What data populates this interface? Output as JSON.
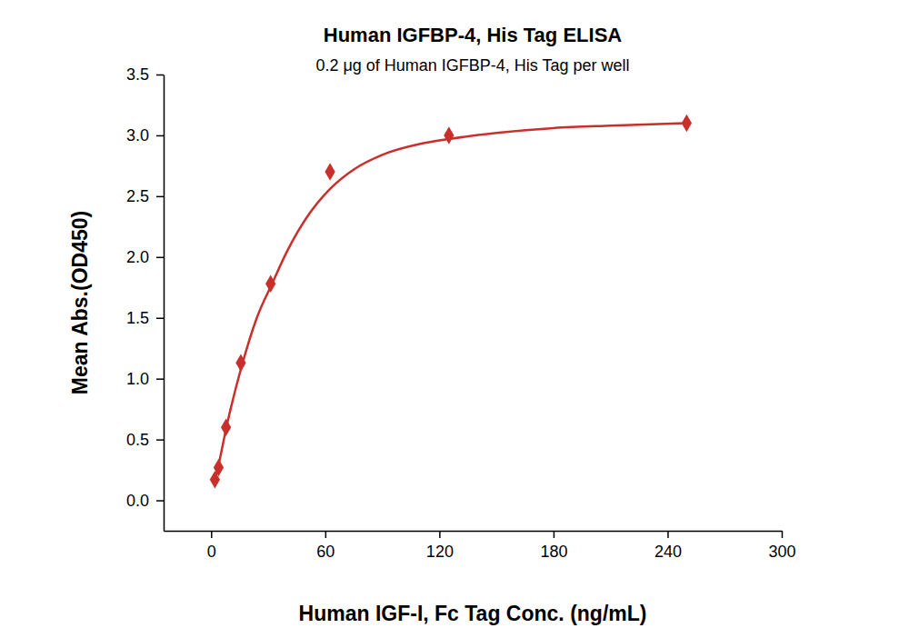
{
  "chart_data": {
    "type": "scatter",
    "title": "Human IGFBP-4, His Tag ELISA",
    "subtitle": "0.2 μg of Human IGFBP-4, His Tag per well",
    "x_label": "Human IGF-I, Fc Tag Conc. (ng/mL)",
    "y_label": "Mean Abs.(OD450)",
    "xlim": [
      -25,
      300
    ],
    "ylim": [
      -0.25,
      3.5
    ],
    "xticks": [
      0,
      60,
      120,
      180,
      240,
      300
    ],
    "yticks": [
      {
        "value": 0,
        "label": "0.0"
      },
      {
        "value": 0.5,
        "label": "0.5"
      },
      {
        "value": 1,
        "label": "1.0"
      },
      {
        "value": 1.5,
        "label": "1.5"
      },
      {
        "value": 2,
        "label": "2.0"
      },
      {
        "value": 2.5,
        "label": "2.5"
      },
      {
        "value": 3,
        "label": "3.0"
      },
      {
        "value": 3.5,
        "label": "3.5"
      }
    ],
    "grid": false,
    "series": [
      {
        "type": "scatter",
        "marker": "diamond",
        "color": "#c9302c",
        "x": [
          1.95,
          3.9,
          7.8,
          15.6,
          31.25,
          62.5,
          125,
          250
        ],
        "values": [
          0.17,
          0.27,
          0.6,
          1.13,
          1.78,
          2.7,
          3.0,
          3.1
        ]
      },
      {
        "type": "line",
        "line_style": "solid",
        "color": "#c9302c",
        "x": [
          1.95,
          4,
          8,
          16,
          24,
          32,
          40,
          50,
          62.5,
          75,
          90,
          110,
          125,
          150,
          180,
          210,
          250
        ],
        "values": [
          0.17,
          0.3,
          0.6,
          1.1,
          1.5,
          1.78,
          2.05,
          2.32,
          2.56,
          2.72,
          2.84,
          2.93,
          2.97,
          3.02,
          3.06,
          3.08,
          3.1
        ]
      }
    ]
  }
}
